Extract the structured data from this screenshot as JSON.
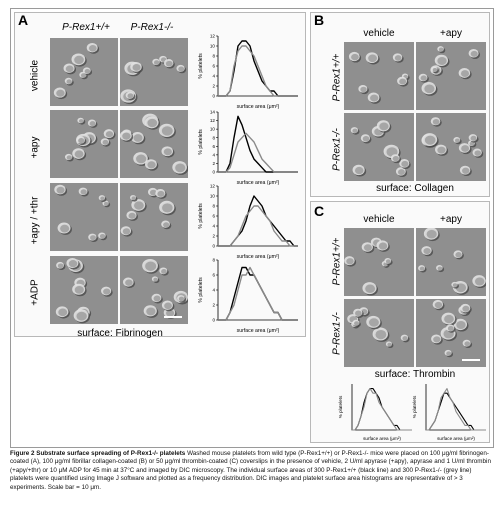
{
  "panel_a": {
    "letter": "A",
    "col_wt": "P-Rex1+/+",
    "col_ko": "P-Rex1-/-",
    "rows": [
      "vehicle",
      "+apy",
      "+apy / +thr",
      "+ADP"
    ],
    "surface": "surface: Fibrinogen"
  },
  "panel_b": {
    "letter": "B",
    "col1": "vehicle",
    "col2": "+apy",
    "row_wt": "P-Rex1+/+",
    "row_ko": "P-Rex1-/-",
    "surface": "surface: Collagen"
  },
  "panel_c": {
    "letter": "C",
    "col1": "vehicle",
    "col2": "+apy",
    "row_wt": "P-Rex1+/+",
    "row_ko": "P-Rex1-/-",
    "surface": "surface: Thrombin"
  },
  "hist_labels": {
    "ylabel": "% platelets",
    "xlabel": "surface area (μm²)"
  },
  "caption": {
    "title": "Figure 2 Substrate surface spreading of P-Rex1-/- platelets",
    "body": "Washed mouse platelets from wild type (P-Rex1+/+) or P-Rex1-/- mice were placed on 100 μg/ml fibrinogen-coated (A), 100 μg/ml fibrillar collagen-coated (B) or 50 μg/ml thrombin-coated (C) coverslips in the presence of vehicle, 2 U/ml apyrase (+apy), apyrase and 1 U/ml thrombin (+apy/+thr) or 10 μM ADP for 45 min at 37°C and imaged by DIC microscopy. The individual surface areas of 300 P-Rex1+/+ (black line) and 300 P-Rex1-/- (grey line) platelets were quantified using Image J software and plotted as a frequency distribution. DIC images and platelet surface area histograms are representative of > 3 experiments. Scale bar = 10 μm."
  },
  "chart_data": [
    {
      "type": "line",
      "panel": "A vehicle",
      "ylabel": "% platelets",
      "xlabel": "surface area (μm²)",
      "ylim": [
        0,
        12
      ],
      "yticks": [
        0,
        2,
        4,
        6,
        8,
        10,
        12
      ],
      "xlim": [
        0,
        40
      ],
      "series": [
        {
          "color": "#000000",
          "x": [
            0,
            2,
            4,
            6,
            8,
            10,
            12,
            14,
            16,
            18,
            20,
            22,
            24,
            26,
            28,
            30,
            32,
            34,
            36,
            38,
            40
          ],
          "y": [
            0,
            0,
            0,
            1,
            5,
            10,
            11,
            11,
            10,
            7,
            5,
            3,
            2,
            1,
            1,
            0,
            0,
            0,
            0,
            0,
            0
          ]
        },
        {
          "color": "#8a8a8a",
          "x": [
            0,
            2,
            4,
            6,
            8,
            10,
            12,
            14,
            16,
            18,
            20,
            22,
            24,
            26,
            28,
            30,
            32,
            34,
            36,
            38,
            40
          ],
          "y": [
            0,
            0,
            0,
            1,
            6,
            9,
            10,
            10,
            9,
            8,
            6,
            4,
            2,
            1,
            0,
            0,
            0,
            0,
            0,
            0,
            0
          ]
        }
      ]
    },
    {
      "type": "line",
      "panel": "A +apy",
      "ylabel": "% platelets",
      "xlabel": "surface area (μm²)",
      "ylim": [
        0,
        14
      ],
      "yticks": [
        0,
        2,
        4,
        6,
        8,
        10,
        12,
        14
      ],
      "xlim": [
        0,
        40
      ],
      "series": [
        {
          "color": "#000000",
          "x": [
            0,
            2,
            4,
            6,
            8,
            10,
            12,
            14,
            16,
            18,
            20,
            22,
            24,
            26,
            28,
            30,
            32,
            34,
            36,
            38,
            40
          ],
          "y": [
            0,
            0,
            0,
            2,
            8,
            13,
            11,
            8,
            5,
            3,
            2,
            1,
            0,
            0,
            0,
            0,
            0,
            0,
            0,
            0,
            0
          ]
        },
        {
          "color": "#8a8a8a",
          "x": [
            0,
            2,
            4,
            6,
            8,
            10,
            12,
            14,
            16,
            18,
            20,
            22,
            24,
            26,
            28,
            30,
            32,
            34,
            36,
            38,
            40
          ],
          "y": [
            0,
            0,
            0,
            1,
            4,
            7,
            8,
            9,
            8,
            7,
            5,
            3,
            2,
            1,
            0,
            0,
            0,
            0,
            0,
            0,
            0
          ]
        }
      ]
    },
    {
      "type": "line",
      "panel": "A +apy / +thr",
      "ylabel": "% platelets",
      "xlabel": "surface area (μm²)",
      "ylim": [
        0,
        12
      ],
      "yticks": [
        0,
        2,
        4,
        6,
        8,
        10,
        12
      ],
      "xlim": [
        0,
        40
      ],
      "series": [
        {
          "color": "#000000",
          "x": [
            0,
            2,
            4,
            6,
            8,
            10,
            12,
            14,
            16,
            18,
            20,
            22,
            24,
            26,
            28,
            30,
            32,
            34,
            36,
            38,
            40
          ],
          "y": [
            0,
            0,
            0,
            0,
            1,
            2,
            3,
            5,
            8,
            10,
            9,
            8,
            6,
            5,
            4,
            3,
            2,
            1,
            1,
            0,
            0
          ]
        },
        {
          "color": "#8a8a8a",
          "x": [
            0,
            2,
            4,
            6,
            8,
            10,
            12,
            14,
            16,
            18,
            20,
            22,
            24,
            26,
            28,
            30,
            32,
            34,
            36,
            38,
            40
          ],
          "y": [
            0,
            0,
            0,
            0,
            1,
            2,
            4,
            6,
            7,
            8,
            8,
            7,
            6,
            5,
            3,
            2,
            1,
            1,
            0,
            0,
            0
          ]
        }
      ]
    },
    {
      "type": "line",
      "panel": "A +ADP",
      "ylabel": "% platelets",
      "xlabel": "surface area (μm²)",
      "ylim": [
        0,
        8
      ],
      "yticks": [
        0,
        2,
        4,
        6,
        8
      ],
      "xlim": [
        0,
        40
      ],
      "series": [
        {
          "color": "#000000",
          "x": [
            0,
            2,
            4,
            6,
            8,
            10,
            12,
            14,
            16,
            18,
            20,
            22,
            24,
            26,
            28,
            30,
            32,
            34,
            36,
            38,
            40
          ],
          "y": [
            0,
            0,
            0,
            1,
            3,
            5,
            7,
            7,
            6,
            6,
            5,
            4,
            3,
            2,
            1,
            1,
            0,
            0,
            0,
            0,
            0
          ]
        },
        {
          "color": "#8a8a8a",
          "x": [
            0,
            2,
            4,
            6,
            8,
            10,
            12,
            14,
            16,
            18,
            20,
            22,
            24,
            26,
            28,
            30,
            32,
            34,
            36,
            38,
            40
          ],
          "y": [
            0,
            0,
            0,
            1,
            2,
            4,
            6,
            6,
            7,
            6,
            5,
            4,
            3,
            2,
            1,
            1,
            0,
            0,
            0,
            0,
            0
          ]
        }
      ]
    },
    {
      "type": "line",
      "panel": "C vehicle",
      "ylabel": "% platelets",
      "xlabel": "surface area (μm²)",
      "xlim": [
        0,
        40
      ],
      "ylim": [
        0,
        10
      ],
      "series": [
        {
          "color": "#000000",
          "x": [
            0,
            2,
            4,
            6,
            8,
            10,
            12,
            14,
            16,
            18,
            20,
            22,
            24,
            26,
            28,
            30,
            32,
            34,
            36,
            38,
            40
          ],
          "y": [
            0,
            0,
            1,
            3,
            6,
            8,
            9,
            9,
            8,
            7,
            5,
            4,
            3,
            2,
            1,
            1,
            0,
            0,
            0,
            0,
            0
          ]
        },
        {
          "color": "#8a8a8a",
          "x": [
            0,
            2,
            4,
            6,
            8,
            10,
            12,
            14,
            16,
            18,
            20,
            22,
            24,
            26,
            28,
            30,
            32,
            34,
            36,
            38,
            40
          ],
          "y": [
            0,
            0,
            1,
            3,
            5,
            8,
            9,
            8,
            8,
            6,
            5,
            4,
            3,
            2,
            1,
            0,
            0,
            0,
            0,
            0,
            0
          ]
        }
      ]
    },
    {
      "type": "line",
      "panel": "C +apy",
      "ylabel": "% platelets",
      "xlabel": "surface area (μm²)",
      "xlim": [
        0,
        40
      ],
      "ylim": [
        0,
        10
      ],
      "series": [
        {
          "color": "#000000",
          "x": [
            0,
            2,
            4,
            6,
            8,
            10,
            12,
            14,
            16,
            18,
            20,
            22,
            24,
            26,
            28,
            30,
            32,
            34,
            36,
            38,
            40
          ],
          "y": [
            0,
            0,
            1,
            2,
            4,
            6,
            8,
            8,
            7,
            6,
            5,
            4,
            3,
            2,
            1,
            1,
            0,
            0,
            0,
            0,
            0
          ]
        },
        {
          "color": "#8a8a8a",
          "x": [
            0,
            2,
            4,
            6,
            8,
            10,
            12,
            14,
            16,
            18,
            20,
            22,
            24,
            26,
            28,
            30,
            32,
            34,
            36,
            38,
            40
          ],
          "y": [
            0,
            0,
            1,
            2,
            4,
            7,
            8,
            9,
            7,
            6,
            4,
            3,
            2,
            1,
            1,
            0,
            0,
            0,
            0,
            0,
            0
          ]
        }
      ]
    }
  ]
}
